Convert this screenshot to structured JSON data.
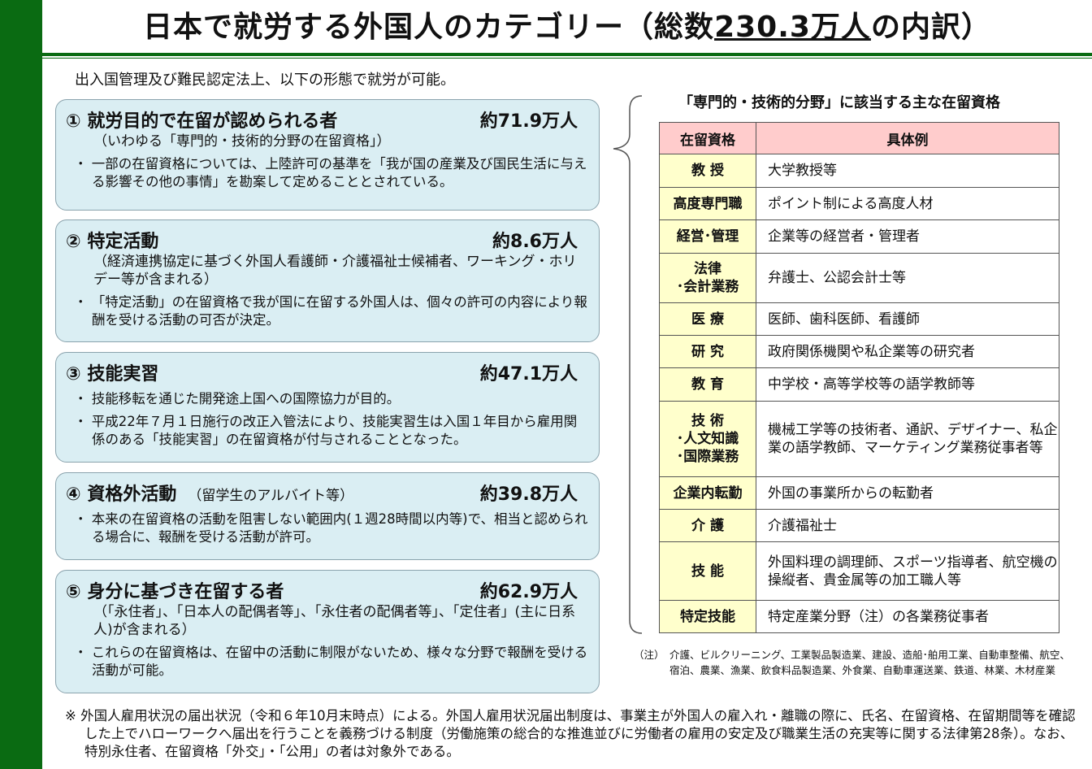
{
  "title": {
    "prefix": "日本で就労する外国人のカテゴリー（総数",
    "total": "230.3万人",
    "suffix": "の内訳）"
  },
  "intro": "出入国管理及び難民認定法上、以下の形態で就労が可能。",
  "boxes": [
    {
      "num": "①",
      "heading": "就労目的で在留が認められる者",
      "count": "約71.9万人",
      "sub": "（いわゆる「専門的・技術的分野の在留資格」）",
      "bullets": [
        "・ 一部の在留資格については、上陸許可の基準を「我が国の産業及び国民生活に与える影響その他の事情」を勘案して定めることとされている。"
      ]
    },
    {
      "num": "②",
      "heading": "特定活動",
      "count": "約8.6万人",
      "sub": "（経済連携協定に基づく外国人看護師・介護福祉士候補者、ワーキング・ホリデー等が含まれる）",
      "bullets": [
        "・ 「特定活動」の在留資格で我が国に在留する外国人は、個々の許可の内容により報酬を受ける活動の可否が決定。"
      ]
    },
    {
      "num": "③",
      "heading": "技能実習",
      "count": "約47.1万人",
      "bullets": [
        "・ 技能移転を通じた開発途上国への国際協力が目的。",
        "・ 平成22年７月１日施行の改正入管法により、技能実習生は入国１年目から雇用関係のある「技能実習」の在留資格が付与されることとなった。"
      ]
    },
    {
      "num": "④",
      "heading": "資格外活動",
      "note": "（留学生のアルバイト等）",
      "count": "約39.8万人",
      "bullets": [
        "・ 本来の在留資格の活動を阻害しない範囲内(１週28時間以内等)で、相当と認められる場合に、報酬を受ける活動が許可。"
      ]
    },
    {
      "num": "⑤",
      "heading": "身分に基づき在留する者",
      "count": "約62.9万人",
      "sub": "（「永住者」、「日本人の配偶者等」、「永住者の配偶者等」、「定住者」(主に日系人)が含まれる）",
      "bullets": [
        "・ これらの在留資格は、在留中の活動に制限がないため、様々な分野で報酬を受ける活動が可能。"
      ]
    }
  ],
  "table": {
    "title": "「専門的・技術的分野」に該当する主な在留資格",
    "headers": [
      "在留資格",
      "具体例"
    ],
    "rows": [
      [
        "教 授",
        "大学教授等"
      ],
      [
        "高度専門職",
        "ポイント制による高度人材"
      ],
      [
        "経営･管理",
        "企業等の経営者・管理者"
      ],
      [
        "法律\n･会計業務",
        "弁護士、公認会計士等"
      ],
      [
        "医 療",
        "医師、歯科医師、看護師"
      ],
      [
        "研 究",
        "政府関係機関や私企業等の研究者"
      ],
      [
        "教 育",
        "中学校・高等学校等の語学教師等"
      ],
      [
        "技 術\n･人文知識\n･国際業務",
        "機械工学等の技術者、通訳、デザイナー、私企業の語学教師、マーケティング業務従事者等"
      ],
      [
        "企業内転勤",
        "外国の事業所からの転勤者"
      ],
      [
        "介 護",
        "介護福祉士"
      ],
      [
        "技 能",
        "外国料理の調理師、スポーツ指導者、航空機の操縦者、貴金属等の加工職人等"
      ],
      [
        "特定技能",
        "特定産業分野（注）の各業務従事者"
      ]
    ]
  },
  "note": {
    "label": "（注）",
    "text": "介護、ビルクリーニング、工業製品製造業、建設、造船･舶用工業、自動車整備、航空、宿泊、農業、漁業、飲食料品製造業、外食業、自動車運送業、鉄道、林業、木材産業"
  },
  "footnote": "※ 外国人雇用状況の届出状況（令和６年10月末時点）による。外国人雇用状況届出制度は、事業主が外国人の雇入れ・離職の際に、氏名、在留資格、在留期間等を確認した上でハローワークへ届出を行うことを義務づける制度（労働施策の総合的な推進並びに労働者の雇用の安定及び職業生活の充実等に関する法律第28条）。なお、特別永住者、在留資格「外交」・「公用」の者は対象外である。",
  "colors": {
    "green": "#0a6b12",
    "box": "#daeef3",
    "table_header": "#ffcccc",
    "table_key": "#ffffcc"
  }
}
